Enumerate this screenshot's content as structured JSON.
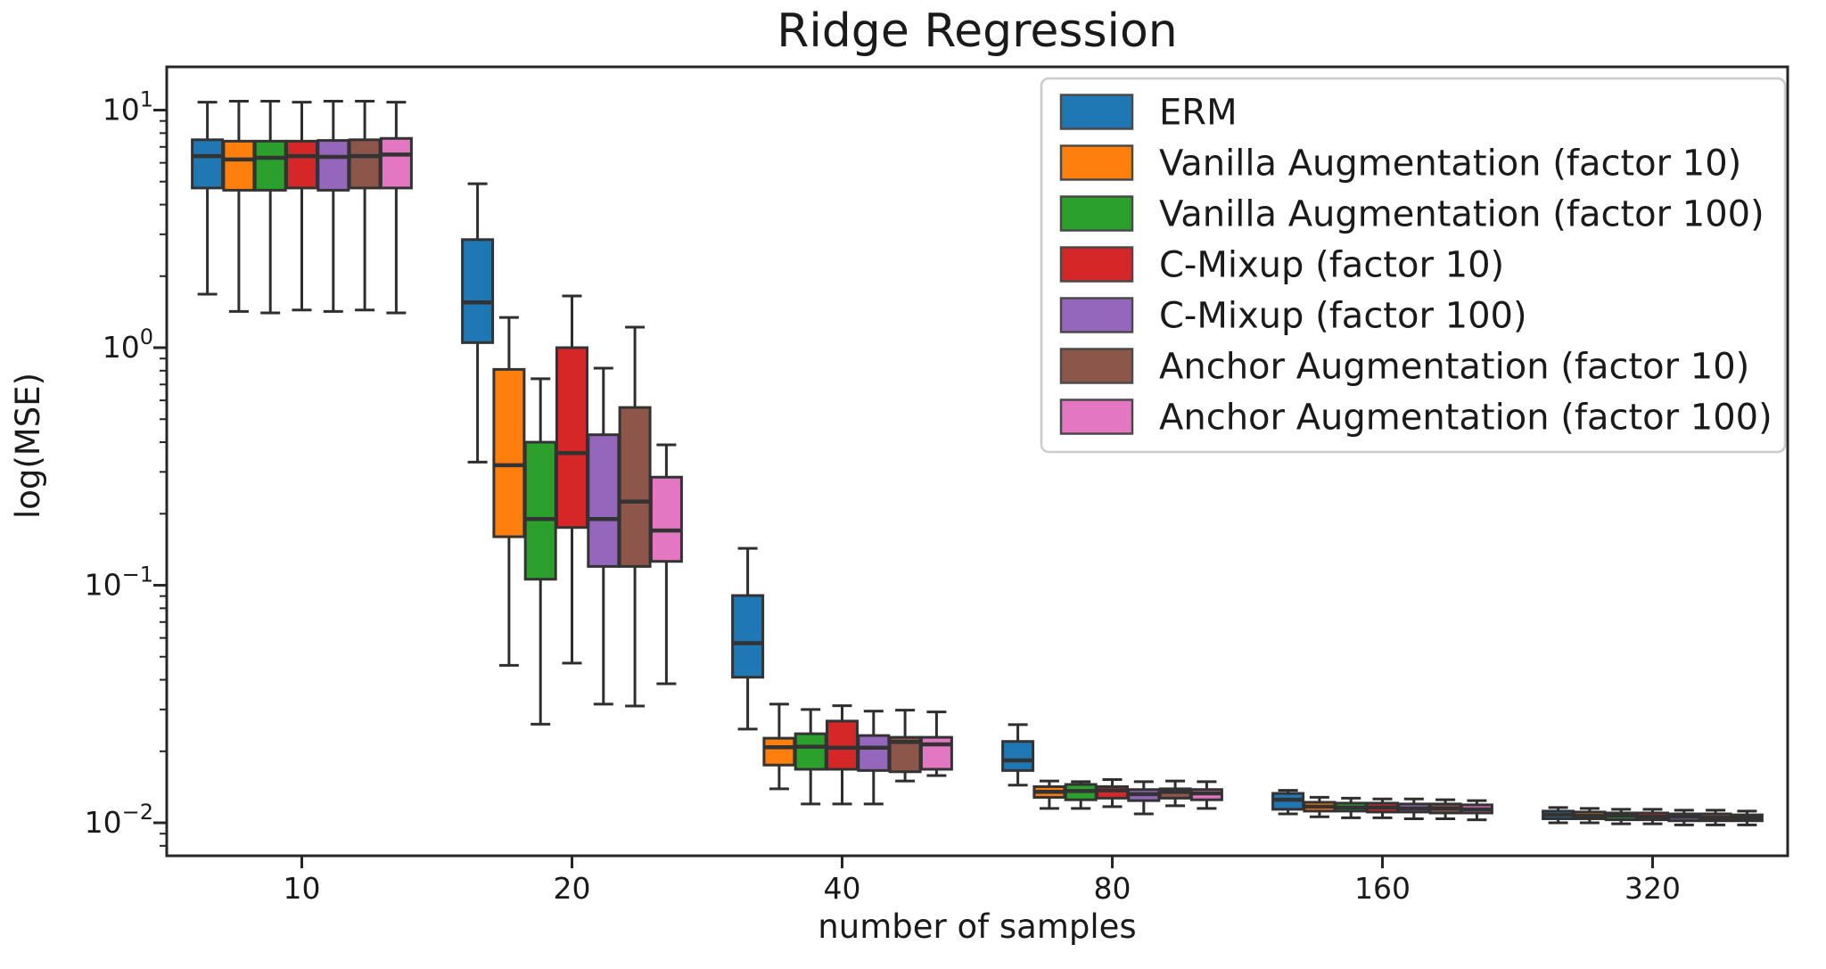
{
  "chart_data": {
    "type": "boxplot",
    "title": "Ridge Regression",
    "xlabel": "number of samples",
    "ylabel": "log(MSE)",
    "yscale": "log",
    "ylim": [
      0.0073,
      15.2
    ],
    "grid": false,
    "legend_position": "upper right",
    "categories": [
      "10",
      "20",
      "40",
      "80",
      "160",
      "320"
    ],
    "y_ticks": [
      {
        "base": "10",
        "exp": "1",
        "value": 10
      },
      {
        "base": "10",
        "exp": "0",
        "value": 1
      },
      {
        "base": "10",
        "exp": "−1",
        "value": 0.1
      },
      {
        "base": "10",
        "exp": "−2",
        "value": 0.01
      }
    ],
    "box_format": [
      "whisker_low",
      "q1",
      "median",
      "q3",
      "whisker_high"
    ],
    "edge_color": "#333333",
    "series": [
      {
        "name": "ERM",
        "color": "#1f77b4",
        "boxes": [
          [
            1.68,
            4.7,
            6.4,
            7.5,
            10.8
          ],
          [
            0.33,
            1.05,
            1.55,
            2.85,
            4.9
          ],
          [
            0.0248,
            0.041,
            0.057,
            0.0905,
            0.143
          ],
          [
            0.0144,
            0.0166,
            0.0183,
            0.022,
            0.0259
          ],
          [
            0.0109,
            0.0114,
            0.0125,
            0.0133,
            0.0137
          ],
          [
            0.01,
            0.0104,
            0.0108,
            0.0112,
            0.0116
          ]
        ]
      },
      {
        "name": "Vanilla Augmentation (factor 10)",
        "color": "#ff7f0e",
        "boxes": [
          [
            1.42,
            4.6,
            6.2,
            7.4,
            10.9
          ],
          [
            0.046,
            0.16,
            0.32,
            0.81,
            1.34
          ],
          [
            0.0139,
            0.0175,
            0.0208,
            0.0227,
            0.0316
          ],
          [
            0.0115,
            0.0128,
            0.0135,
            0.0142,
            0.015
          ],
          [
            0.0106,
            0.0112,
            0.0117,
            0.0122,
            0.0128
          ],
          [
            0.01,
            0.0104,
            0.0107,
            0.0111,
            0.0115
          ]
        ]
      },
      {
        "name": "Vanilla Augmentation (factor 100)",
        "color": "#2ca02c",
        "boxes": [
          [
            1.4,
            4.6,
            6.3,
            7.4,
            10.9
          ],
          [
            0.026,
            0.106,
            0.19,
            0.4,
            0.74
          ],
          [
            0.012,
            0.0168,
            0.0209,
            0.0237,
            0.03
          ],
          [
            0.0115,
            0.0125,
            0.0136,
            0.0145,
            0.0149
          ],
          [
            0.0105,
            0.0112,
            0.0116,
            0.0121,
            0.0127
          ],
          [
            0.0099,
            0.0103,
            0.0107,
            0.011,
            0.0114
          ]
        ]
      },
      {
        "name": "C-Mixup (factor 10)",
        "color": "#d62728",
        "boxes": [
          [
            1.44,
            4.7,
            6.4,
            7.4,
            10.8
          ],
          [
            0.047,
            0.175,
            0.36,
            1.0,
            1.65
          ],
          [
            0.012,
            0.0168,
            0.0207,
            0.0268,
            0.0311
          ],
          [
            0.0117,
            0.0127,
            0.0137,
            0.0142,
            0.0152
          ],
          [
            0.0105,
            0.0111,
            0.0116,
            0.0121,
            0.0126
          ],
          [
            0.0099,
            0.0103,
            0.0106,
            0.011,
            0.0114
          ]
        ]
      },
      {
        "name": "C-Mixup (factor 100)",
        "color": "#9467bd",
        "boxes": [
          [
            1.42,
            4.6,
            6.35,
            7.45,
            10.9
          ],
          [
            0.0316,
            0.12,
            0.19,
            0.43,
            0.82
          ],
          [
            0.012,
            0.0166,
            0.0207,
            0.0233,
            0.0295
          ],
          [
            0.0109,
            0.0124,
            0.0132,
            0.0138,
            0.0149
          ],
          [
            0.0104,
            0.0111,
            0.0115,
            0.012,
            0.0126
          ],
          [
            0.0098,
            0.0102,
            0.0106,
            0.0109,
            0.0113
          ]
        ]
      },
      {
        "name": "Anchor Augmentation (factor 10)",
        "color": "#8c564b",
        "boxes": [
          [
            1.44,
            4.7,
            6.4,
            7.5,
            10.9
          ],
          [
            0.031,
            0.12,
            0.225,
            0.56,
            1.22
          ],
          [
            0.015,
            0.0164,
            0.0219,
            0.0229,
            0.0298
          ],
          [
            0.0118,
            0.0127,
            0.0135,
            0.0139,
            0.015
          ],
          [
            0.0104,
            0.011,
            0.0115,
            0.012,
            0.0125
          ],
          [
            0.0098,
            0.0102,
            0.0105,
            0.0109,
            0.0113
          ]
        ]
      },
      {
        "name": "Anchor Augmentation (factor 100)",
        "color": "#e377c2",
        "boxes": [
          [
            1.4,
            4.7,
            6.5,
            7.6,
            10.8
          ],
          [
            0.0385,
            0.126,
            0.17,
            0.285,
            0.39
          ],
          [
            0.0158,
            0.0168,
            0.0214,
            0.0229,
            0.0293
          ],
          [
            0.0115,
            0.0125,
            0.0133,
            0.0138,
            0.0149
          ],
          [
            0.0103,
            0.011,
            0.0114,
            0.0119,
            0.0124
          ],
          [
            0.0098,
            0.0102,
            0.0105,
            0.0108,
            0.0112
          ]
        ]
      }
    ]
  }
}
